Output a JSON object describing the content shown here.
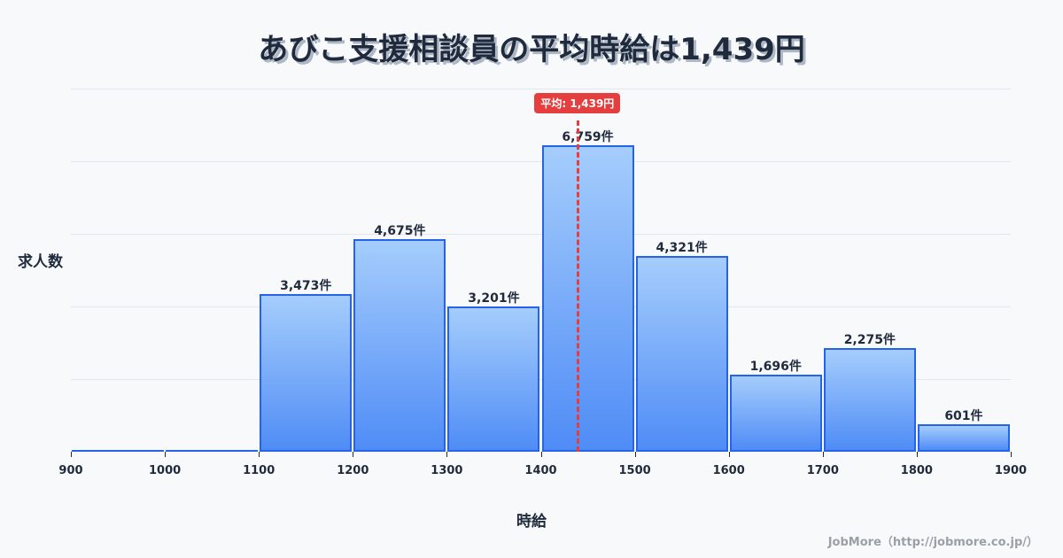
{
  "title": "あびこ支援相談員の平均時給は1,439円",
  "ylabel": "求人数",
  "xlabel": "時給",
  "credit": "JobMore（http://jobmore.co.jp/）",
  "mean": {
    "value": 1439,
    "label": "平均: 1,439円",
    "color": "#e53e3e"
  },
  "colors": {
    "bar_border": "#2563eb",
    "bar_top": "#a5cdfc",
    "bar_bottom": "#4f8cf6"
  },
  "chart_data": {
    "type": "bar",
    "title": "あびこ支援相談員の平均時給は1,439円",
    "xlabel": "時給",
    "ylabel": "求人数",
    "categories": [
      "900-1000",
      "1000-1100",
      "1100-1200",
      "1200-1300",
      "1300-1400",
      "1400-1500",
      "1500-1600",
      "1600-1700",
      "1700-1800",
      "1800-1900"
    ],
    "bin_edges": [
      900,
      1000,
      1100,
      1200,
      1300,
      1400,
      1500,
      1600,
      1700,
      1800,
      1900
    ],
    "values": [
      0,
      0,
      3473,
      4675,
      3201,
      6759,
      4321,
      1696,
      2275,
      601
    ],
    "value_labels": [
      "",
      "",
      "3,473件",
      "4,675件",
      "3,201件",
      "6,759件",
      "4,321件",
      "1,696件",
      "2,275件",
      "601件"
    ],
    "x_ticks": [
      "900",
      "1000",
      "1100",
      "1200",
      "1300",
      "1400",
      "1500",
      "1600",
      "1700",
      "1800",
      "1900"
    ],
    "ylim": [
      0,
      8000
    ],
    "grid": true,
    "annotations": [
      {
        "type": "vline",
        "x": 1439,
        "label": "平均: 1,439円"
      }
    ]
  }
}
